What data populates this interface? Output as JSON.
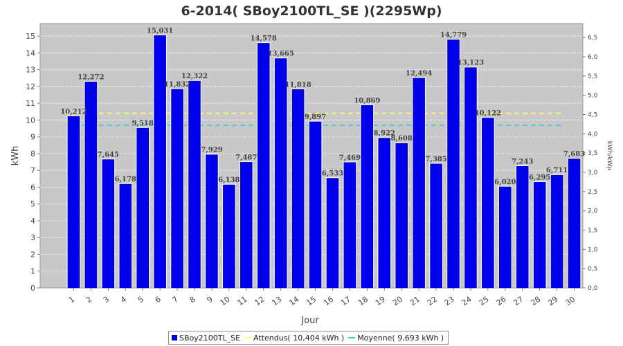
{
  "chart_data": {
    "type": "bar",
    "title": "6-2014( SBoy2100TL_SE )(2295Wp)",
    "xlabel": "Jour",
    "ylabel": "kWh",
    "ylabel_right": "kWh/kWp",
    "ylim": [
      0,
      15.75
    ],
    "yticks": [
      "0",
      "1",
      "2",
      "3",
      "4",
      "5",
      "6",
      "7",
      "8",
      "9",
      "10",
      "11",
      "12",
      "13",
      "14",
      "15"
    ],
    "yticks_right": [
      "0,0",
      "0,5",
      "1,0",
      "1,5",
      "2,0",
      "2,5",
      "3,0",
      "3,5",
      "4,0",
      "4,5",
      "5,0",
      "5,5",
      "6,0",
      "6,5"
    ],
    "grid": true,
    "legend_position": "bottom",
    "categories": [
      "1",
      "2",
      "3",
      "4",
      "5",
      "6",
      "7",
      "8",
      "9",
      "10",
      "11",
      "12",
      "13",
      "14",
      "15",
      "16",
      "17",
      "18",
      "19",
      "20",
      "21",
      "22",
      "23",
      "24",
      "25",
      "26",
      "27",
      "28",
      "29",
      "30"
    ],
    "series": [
      {
        "name": "SBoy2100TL_SE",
        "color": "#0000ee",
        "values": [
          10.212,
          12.272,
          7.645,
          6.178,
          9.518,
          15.031,
          11.832,
          12.322,
          7.929,
          6.138,
          7.487,
          14.578,
          13.665,
          11.818,
          9.897,
          6.533,
          7.469,
          10.869,
          8.922,
          8.608,
          12.494,
          7.385,
          14.779,
          13.123,
          10.122,
          6.02,
          7.243,
          6.295,
          6.711,
          7.683
        ],
        "labels": [
          "10,212",
          "12,272",
          "7,645",
          "6,178",
          "9,518",
          "15,031",
          "11,832",
          "12,322",
          "7,929",
          "6,138",
          "7,487",
          "14,578",
          "13,665",
          "11,818",
          "9,897",
          "6,533",
          "7,469",
          "10,869",
          "8,922",
          "8,608",
          "12,494",
          "7,385",
          "14,779",
          "13,123",
          "10,122",
          "6,020",
          "7,243",
          "6,295",
          "6,711",
          "7,683"
        ]
      }
    ],
    "reference_lines": [
      {
        "name": "Attendus( 10,404 kWh )",
        "value": 10.404,
        "color": "#ffff66"
      },
      {
        "name": "Moyenne( 9,693 kWh )",
        "value": 9.693,
        "color": "#33cccc"
      }
    ]
  },
  "legend": {
    "items": [
      {
        "label": "SBoy2100TL_SE",
        "color": "#0000ee",
        "kind": "box"
      },
      {
        "label": "Attendus( 10,404 kWh )",
        "color": "#ffff66",
        "kind": "line"
      },
      {
        "label": "Moyenne( 9,693 kWh )",
        "color": "#33cccc",
        "kind": "line"
      }
    ]
  }
}
